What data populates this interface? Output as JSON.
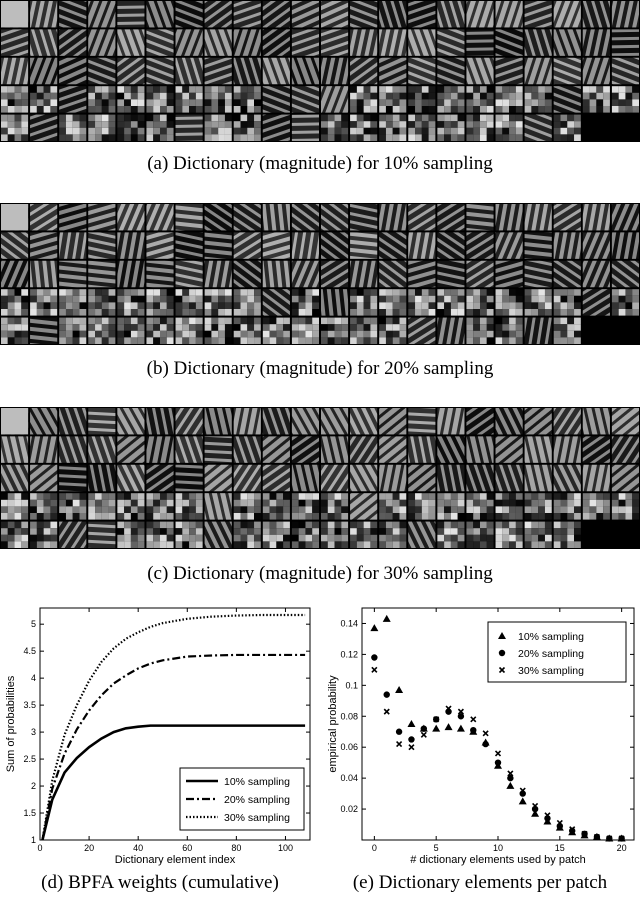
{
  "figure": {
    "captions": {
      "a": "(a) Dictionary (magnitude) for 10% sampling",
      "b": "(b) Dictionary (magnitude) for 20% sampling",
      "c": "(c) Dictionary (magnitude) for 30% sampling",
      "d": "(d) BPFA weights (cumulative)",
      "e": "(e) Dictionary elements per patch"
    }
  },
  "chart_data": [
    {
      "type": "line",
      "title": "",
      "xlabel": "Dictionary element index",
      "ylabel": "Sum of probabilities",
      "xlim": [
        0,
        110
      ],
      "ylim": [
        1,
        5.3
      ],
      "xticks": [
        0,
        20,
        40,
        60,
        80,
        100
      ],
      "yticks": [
        1,
        1.5,
        2,
        2.5,
        3,
        3.5,
        4,
        4.5,
        5
      ],
      "x": [
        1,
        5,
        10,
        15,
        20,
        25,
        30,
        35,
        40,
        45,
        50,
        60,
        70,
        80,
        90,
        100,
        108
      ],
      "series": [
        {
          "name": "10% sampling",
          "style": "solid",
          "values": [
            1.0,
            1.75,
            2.25,
            2.52,
            2.72,
            2.88,
            3.0,
            3.07,
            3.1,
            3.12,
            3.12,
            3.12,
            3.12,
            3.12,
            3.12,
            3.12,
            3.12
          ]
        },
        {
          "name": "20% sampling",
          "style": "dashdot",
          "values": [
            1.0,
            1.95,
            2.6,
            3.05,
            3.4,
            3.68,
            3.9,
            4.05,
            4.18,
            4.27,
            4.33,
            4.4,
            4.42,
            4.43,
            4.43,
            4.43,
            4.43
          ]
        },
        {
          "name": "30% sampling",
          "style": "dotted",
          "values": [
            1.0,
            2.1,
            2.95,
            3.5,
            3.95,
            4.3,
            4.55,
            4.73,
            4.85,
            4.95,
            5.02,
            5.1,
            5.14,
            5.16,
            5.17,
            5.17,
            5.17
          ]
        }
      ],
      "legend": "bottom-right"
    },
    {
      "type": "scatter",
      "title": "",
      "xlabel": "# dictionary elements used by patch",
      "ylabel": "empirical probability",
      "xlim": [
        -1,
        21
      ],
      "ylim": [
        0,
        0.15
      ],
      "xticks": [
        0,
        5,
        10,
        15,
        20
      ],
      "yticks": [
        0.02,
        0.04,
        0.06,
        0.08,
        0.1,
        0.12,
        0.14
      ],
      "x": [
        0,
        1,
        2,
        3,
        4,
        5,
        6,
        7,
        8,
        9,
        10,
        11,
        12,
        13,
        14,
        15,
        16,
        17,
        18,
        19,
        20
      ],
      "series": [
        {
          "name": "10% sampling",
          "marker": "triangle",
          "values": [
            0.137,
            0.143,
            0.097,
            0.075,
            0.072,
            0.072,
            0.073,
            0.072,
            0.07,
            0.063,
            0.048,
            0.035,
            0.025,
            0.017,
            0.012,
            0.008,
            0.005,
            0.003,
            0.002,
            0.001,
            0.001
          ]
        },
        {
          "name": "20% sampling",
          "marker": "circle",
          "values": [
            0.118,
            0.094,
            0.07,
            0.065,
            0.072,
            0.078,
            0.083,
            0.08,
            0.071,
            0.062,
            0.05,
            0.04,
            0.03,
            0.02,
            0.014,
            0.009,
            0.006,
            0.004,
            0.002,
            0.001,
            0.001
          ]
        },
        {
          "name": "30% sampling",
          "marker": "x",
          "values": [
            0.11,
            0.083,
            0.062,
            0.06,
            0.068,
            0.078,
            0.085,
            0.083,
            0.078,
            0.069,
            0.056,
            0.043,
            0.032,
            0.022,
            0.016,
            0.011,
            0.007,
            0.004,
            0.002,
            0.001,
            0.001
          ]
        }
      ],
      "legend": "top-right"
    }
  ]
}
